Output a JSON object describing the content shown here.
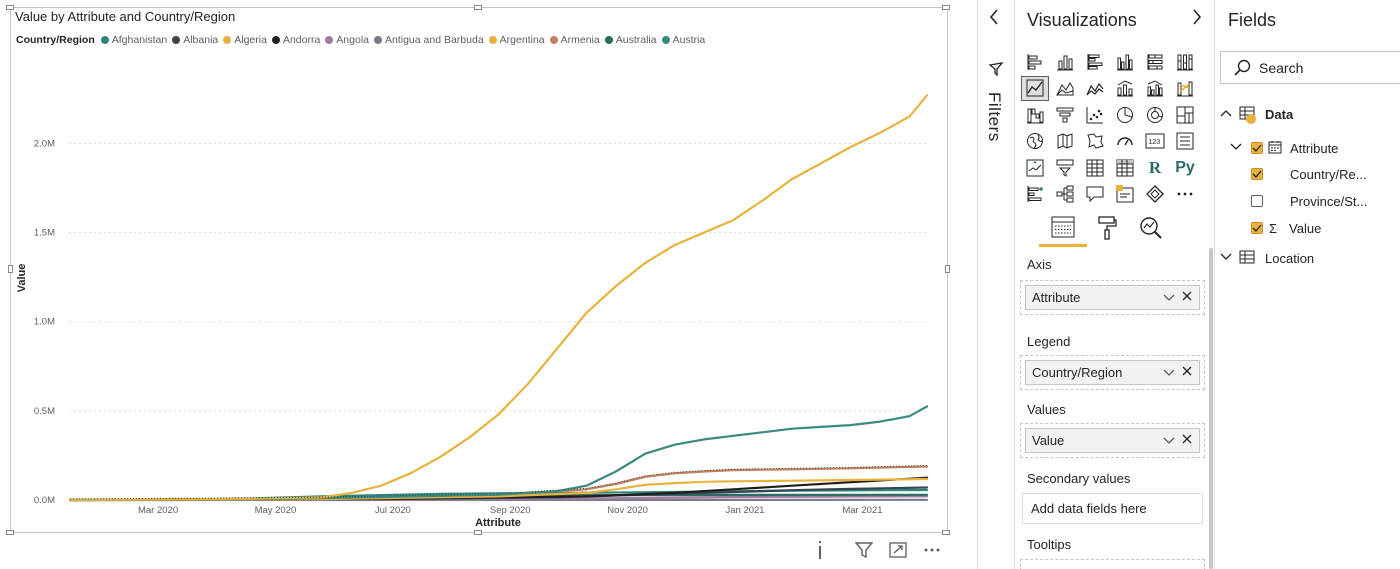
{
  "chart": {
    "title": "Value by Attribute and Country/Region",
    "legend_title": "Country/Region",
    "legend": [
      {
        "name": "Afghanistan",
        "color": "#2f8577"
      },
      {
        "name": "Albania",
        "color": "#34454f"
      },
      {
        "name": "Algeria",
        "color": "#e8b33c"
      },
      {
        "name": "Andorra",
        "color": "#1f1f1f"
      },
      {
        "name": "Angola",
        "color": "#a07ba0"
      },
      {
        "name": "Antigua and Barbuda",
        "color": "#7a7a8c"
      },
      {
        "name": "Argentina",
        "color": "#e8b33c"
      },
      {
        "name": "Armenia",
        "color": "#c08060"
      },
      {
        "name": "Australia",
        "color": "#2e6b63"
      },
      {
        "name": "Austria",
        "color": "#3a8a80"
      }
    ]
  },
  "chart_data": {
    "type": "line",
    "title": "Value by Attribute and Country/Region",
    "xlabel": "Attribute",
    "ylabel": "Value",
    "x_ticks": [
      "Mar 2020",
      "May 2020",
      "Jul 2020",
      "Sep 2020",
      "Nov 2020",
      "Jan 2021",
      "Mar 2021"
    ],
    "y_ticks": [
      "0.0M",
      "0.5M",
      "1.0M",
      "1.5M",
      "2.0M"
    ],
    "ylim": [
      0,
      2300000
    ],
    "x_unit": "months since Jan 2020",
    "grid": true,
    "legend_position": "top-left",
    "series": [
      {
        "name": "Argentina",
        "color": "#e8b33c",
        "x": [
          0.7,
          3.5,
          5.0,
          5.5,
          6.0,
          6.5,
          7.0,
          7.5,
          8.0,
          8.5,
          9.0,
          9.5,
          10.0,
          10.5,
          11.0,
          11.5,
          12.0,
          12.5,
          13.0,
          13.5,
          14.0,
          14.5,
          15.0,
          15.3
        ],
        "y": [
          0,
          5000,
          15000,
          40000,
          80000,
          150000,
          240000,
          350000,
          480000,
          650000,
          850000,
          1050000,
          1200000,
          1330000,
          1430000,
          1500000,
          1570000,
          1680000,
          1800000,
          1890000,
          1980000,
          2060000,
          2150000,
          2270000
        ]
      },
      {
        "name": "Austria",
        "color": "#3a8a80",
        "x": [
          0.7,
          4.0,
          8.0,
          9.0,
          9.5,
          10.0,
          10.5,
          11.0,
          11.5,
          12.0,
          12.5,
          13.0,
          13.5,
          14.0,
          14.5,
          15.0,
          15.3
        ],
        "y": [
          0,
          5000,
          30000,
          50000,
          80000,
          160000,
          260000,
          310000,
          340000,
          360000,
          380000,
          400000,
          410000,
          420000,
          440000,
          470000,
          525000
        ]
      },
      {
        "name": "Armenia",
        "color": "#c08060",
        "x": [
          0.7,
          5.0,
          8.0,
          9.5,
          10.0,
          10.5,
          11.0,
          11.5,
          12.0,
          13.0,
          14.0,
          15.3
        ],
        "y": [
          0,
          10000,
          30000,
          60000,
          90000,
          130000,
          150000,
          160000,
          168000,
          172000,
          178000,
          188000
        ]
      },
      {
        "name": "Algeria",
        "color": "#e8b33c",
        "x": [
          0.7,
          5.0,
          8.0,
          9.5,
          10.0,
          10.5,
          11.0,
          11.5,
          12.0,
          13.0,
          14.0,
          15.3
        ],
        "y": [
          0,
          5000,
          20000,
          40000,
          60000,
          85000,
          95000,
          102000,
          105000,
          108000,
          112000,
          118000
        ]
      },
      {
        "name": "Andorra",
        "color": "#1f1f1f",
        "x": [
          0.7,
          6.0,
          9.5,
          11.0,
          12.0,
          13.0,
          14.0,
          15.3
        ],
        "y": [
          0,
          8000,
          20000,
          40000,
          60000,
          80000,
          100000,
          125000
        ]
      },
      {
        "name": "Albania",
        "color": "#34454f",
        "x": [
          0.7,
          6.0,
          9.0,
          10.0,
          11.0,
          12.0,
          13.0,
          14.0,
          15.3
        ],
        "y": [
          0,
          5000,
          15000,
          25000,
          35000,
          45000,
          55000,
          62000,
          70000
        ]
      },
      {
        "name": "Afghanistan",
        "color": "#2f8577",
        "x": [
          0.7,
          3.0,
          5.0,
          7.0,
          9.0,
          11.0,
          13.0,
          15.3
        ],
        "y": [
          0,
          1000,
          20000,
          35000,
          40000,
          45000,
          52000,
          56000
        ]
      },
      {
        "name": "Australia",
        "color": "#2e6b63",
        "x": [
          0.7,
          2.5,
          4.0,
          6.0,
          9.0,
          12.0,
          15.3
        ],
        "y": [
          0,
          4000,
          6500,
          18000,
          27000,
          28500,
          29000
        ]
      },
      {
        "name": "Angola",
        "color": "#a07ba0",
        "x": [
          0.7,
          6.0,
          10.0,
          12.0,
          15.3
        ],
        "y": [
          0,
          1000,
          10000,
          17000,
          21000
        ]
      },
      {
        "name": "Antigua and Barbuda",
        "color": "#7a7a8c",
        "x": [
          0.7,
          15.3
        ],
        "y": [
          0,
          1200
        ]
      }
    ]
  },
  "filters": {
    "label": "Filters",
    "collapse_icon": "chevron-left-icon"
  },
  "visualizations": {
    "title": "Visualizations",
    "wells": {
      "axis_label": "Axis",
      "axis_value": "Attribute",
      "legend_label": "Legend",
      "legend_value": "Country/Region",
      "values_label": "Values",
      "values_value": "Value",
      "secondary_label": "Secondary values",
      "secondary_placeholder": "Add data fields here",
      "tooltips_label": "Tooltips"
    },
    "r_label": "R",
    "py_label": "Py",
    "card_label": "123"
  },
  "fields": {
    "title": "Fields",
    "search_placeholder": "Search",
    "tables": [
      {
        "name": "Data"
      },
      {
        "name": "Location"
      }
    ],
    "items": [
      {
        "name": "Attribute",
        "checked": true
      },
      {
        "name": "Country/Re...",
        "checked": true
      },
      {
        "name": "Province/St...",
        "checked": false
      },
      {
        "name": "Value",
        "checked": true
      }
    ],
    "sigma": "Σ"
  },
  "colors": {
    "accent": "#e8b33c",
    "teal": "#2f8577"
  }
}
